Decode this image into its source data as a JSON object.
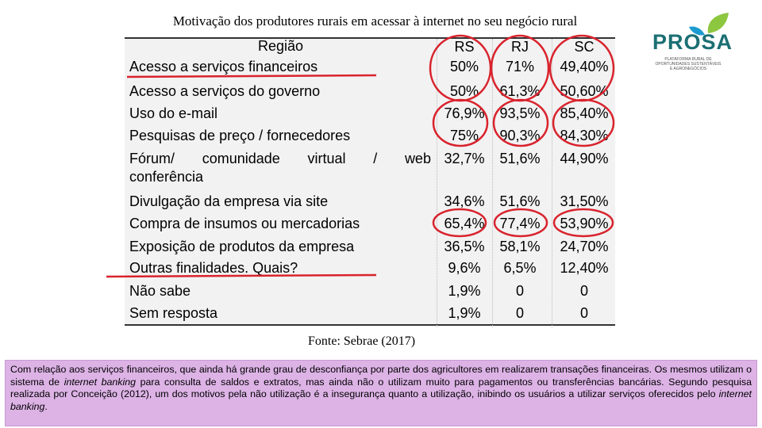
{
  "title": "Motivação dos produtores rurais em acessar à internet no seu negócio rural",
  "logo": {
    "word": "PROSA",
    "subtitle": "PLATAFORMA RURAL DE OPORTUNIDADES SUSTENTÁVEIS E AGRONEGÓCIOS",
    "colors": {
      "text": "#1b6f73",
      "leaf_green": "#8dc63f",
      "leaf_blue": "#1b9bd1"
    }
  },
  "table": {
    "headers": {
      "label": "Região",
      "rs": "RS",
      "rj": "RJ",
      "sc": "SC"
    },
    "rows": [
      {
        "label": "Acesso a serviços financeiros",
        "rs": "50%",
        "rj": "71%",
        "sc": "49,40%"
      },
      {
        "label": "Acesso a serviços do governo",
        "rs": "50%",
        "rj": "61,3%",
        "sc": "50,60%"
      },
      {
        "label": "Uso do e-mail",
        "rs": "76,9%",
        "rj": "93,5%",
        "sc": "85,40%"
      },
      {
        "label": "Pesquisas de preço / fornecedores",
        "rs": "75%",
        "rj": "90,3%",
        "sc": "84,30%"
      },
      {
        "label_words": [
          "Fórum/",
          "comunidade",
          "virtual",
          "/",
          "web"
        ],
        "label_line2": "conferência",
        "rs": "32,7%",
        "rj": "51,6%",
        "sc": "44,90%"
      },
      {
        "label": "Divulgação da empresa via site",
        "rs": "34,6%",
        "rj": "51,6%",
        "sc": "31,50%"
      },
      {
        "label": "Compra de insumos ou mercadorias",
        "rs": "65,4%",
        "rj": "77,4%",
        "sc": "53,90%"
      },
      {
        "label": "Exposição de produtos da empresa",
        "rs": "36,5%",
        "rj": "58,1%",
        "sc": "24,70%"
      },
      {
        "label": "Outras finalidades. Quais?",
        "rs": "9,6%",
        "rj": "6,5%",
        "sc": "12,40%"
      },
      {
        "label": "Não sabe",
        "rs": "1,9%",
        "rj": "0",
        "sc": "0"
      },
      {
        "label": "Sem resposta",
        "rs": "1,9%",
        "rj": "0",
        "sc": "0"
      }
    ]
  },
  "source": "Fonte: Sebrae (2017)",
  "footer": {
    "p1": "Com relação aos serviços financeiros, que ainda há grande grau de desconfiança por parte dos agricultores em realizarem transações financeiras. Os mesmos utilizam o sistema de ",
    "em1": "internet banking",
    "p2": " para consulta de saldos e extratos, mas ainda não o utilizam muito para pagamentos ou transferências bancárias. Segundo pesquisa realizada por Conceição (2012), um dos motivos pela não utilização é a insegurança quanto a utilização, inibindo os usuários a utilizar serviços oferecidos pelo ",
    "em2": "internet banking",
    "p3": "."
  },
  "annotation_color": "#d9232d"
}
